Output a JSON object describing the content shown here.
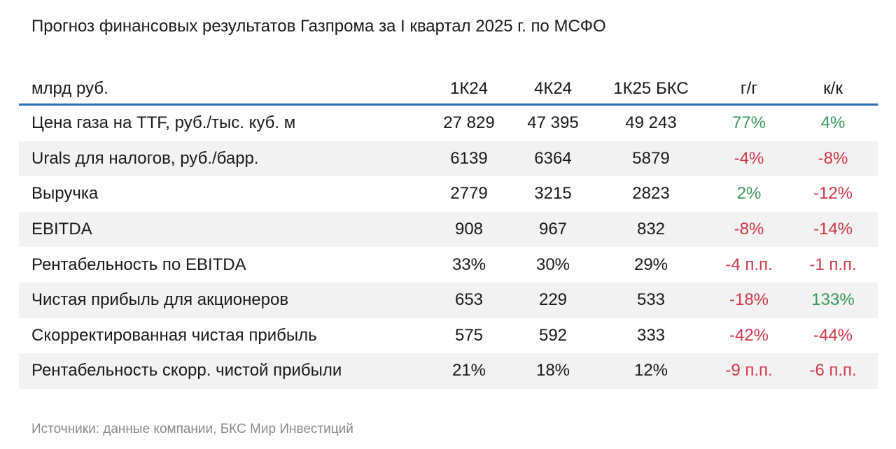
{
  "title": "Прогноз финансовых результатов Газпрома за I квартал 2025 г. по МСФО",
  "header": {
    "label": "млрд руб.",
    "col1": "1К24",
    "col2": "4К24",
    "col3": "1К25 БКС",
    "col4": "г/г",
    "col5": "к/к"
  },
  "rows": [
    {
      "label": "Цена газа на TTF, руб./тыс. куб. м",
      "q1_24": "27 829",
      "q4_24": "47 395",
      "q1_25": "49 243",
      "yoy": "77%",
      "qoq": "4%"
    },
    {
      "label": "Urals для налогов, руб./барр.",
      "q1_24": "6139",
      "q4_24": "6364",
      "q1_25": "5879",
      "yoy": "-4%",
      "qoq": "-8%"
    },
    {
      "label": "Выручка",
      "q1_24": "2779",
      "q4_24": "3215",
      "q1_25": "2823",
      "yoy": "2%",
      "qoq": "-12%"
    },
    {
      "label": "EBITDA",
      "q1_24": "908",
      "q4_24": "967",
      "q1_25": "832",
      "yoy": "-8%",
      "qoq": "-14%"
    },
    {
      "label": "Рентабельность по EBITDA",
      "q1_24": "33%",
      "q4_24": "30%",
      "q1_25": "29%",
      "yoy": "-4 п.п.",
      "qoq": "-1 п.п."
    },
    {
      "label": "Чистая прибыль для акционеров",
      "q1_24": "653",
      "q4_24": "229",
      "q1_25": "533",
      "yoy": "-18%",
      "qoq": "133%"
    },
    {
      "label": "Скорректированная чистая прибыль",
      "q1_24": "575",
      "q4_24": "592",
      "q1_25": "333",
      "yoy": "-42%",
      "qoq": "-44%"
    },
    {
      "label": "Рентабельность скорр. чистой прибыли",
      "q1_24": "21%",
      "q4_24": "18%",
      "q1_25": "12%",
      "yoy": "-9 п.п.",
      "qoq": "-6 п.п."
    }
  ],
  "colors": {
    "positive": "#3a9a5a",
    "negative": "#d0384a",
    "header_rule": "#2a6fb0",
    "row_shade": "#f2f2f2"
  },
  "source": "Источники: данные компании, БКС Мир Инвестиций"
}
